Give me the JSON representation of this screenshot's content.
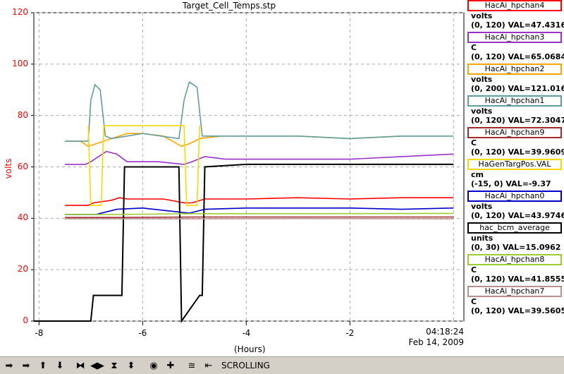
{
  "chart_data": {
    "type": "line",
    "title": "Target_Cell_Temps.stp",
    "ylabel": "volts",
    "xlabel": "(Hours)",
    "timestamp_time": "04:18:24",
    "timestamp_date": "Feb 14, 2009",
    "ylim": [
      0,
      120
    ],
    "xlim": [
      -8.1,
      0.2
    ],
    "yticks": [
      0,
      20,
      40,
      60,
      80,
      100,
      120
    ],
    "xticks": [
      -8,
      -6,
      -4,
      -2
    ],
    "grid": true,
    "series": [
      {
        "name": "HacAi_hpchan4",
        "color": "#ff0000",
        "unit": "volts",
        "range": "(0, 120) VAL=47.4316",
        "x": [
          -7.5,
          -7.05,
          -6.95,
          -6.6,
          -6.45,
          -6.3,
          -5.6,
          -5.2,
          -5.05,
          -4.8,
          -4.4,
          -4,
          -3,
          -2,
          -1,
          0
        ],
        "y": [
          45,
          45,
          46,
          47,
          48,
          47.5,
          47.5,
          46,
          46,
          47.5,
          47.5,
          47.5,
          48,
          47.5,
          48,
          48
        ]
      },
      {
        "name": "HacAi_hpchan3",
        "color": "#9932cc",
        "unit": "C",
        "range": "(0, 120) VAL=65.0684",
        "x": [
          -7.5,
          -7.1,
          -7.0,
          -6.7,
          -6.5,
          -6.3,
          -5.7,
          -5.2,
          -5.05,
          -4.8,
          -4.4,
          -4,
          -3,
          -2,
          -1,
          0
        ],
        "y": [
          61,
          61,
          62,
          66,
          65,
          62,
          62,
          61,
          62,
          64,
          63,
          63,
          63,
          63,
          64,
          65
        ]
      },
      {
        "name": "HacAi_hpchan2",
        "color": "#ffa500",
        "unit": "volts",
        "range": "(0, 200) VAL=121.016",
        "x": [
          -7.5,
          -7.2,
          -7.05,
          -6.9,
          -6.6,
          -6.3,
          -6.0,
          -5.6,
          -5.25,
          -5.1,
          -4.9,
          -4.5,
          -4.0,
          -3.0,
          -2.0,
          -1.0,
          0
        ],
        "y": [
          70,
          70,
          68,
          69,
          71,
          73,
          73,
          72,
          68,
          69,
          71,
          72,
          72,
          72,
          71,
          72,
          72
        ]
      },
      {
        "name": "HacAi_hpchan1",
        "color": "#5f9ea0",
        "unit": "volts",
        "range": "(0, 120) VAL=72.3047",
        "x": [
          -7.5,
          -7.05,
          -7.0,
          -6.92,
          -6.82,
          -6.72,
          -6.6,
          -6.0,
          -5.3,
          -5.2,
          -5.1,
          -4.95,
          -4.85,
          -4.6,
          -4.0,
          -3.0,
          -2.0,
          -1.0,
          0
        ],
        "y": [
          70,
          70,
          86,
          92,
          90,
          72,
          71,
          73,
          71,
          86,
          93,
          91,
          72,
          72,
          72,
          72,
          71,
          72,
          72
        ]
      },
      {
        "name": "HacAi_hpchan9",
        "color": "#a52a2a",
        "unit": "C",
        "range": "(0, 120) VAL=39.9609",
        "x": [
          -7.5,
          -6.5,
          -5.0,
          -3.0,
          0
        ],
        "y": [
          40.3,
          40.3,
          40.5,
          40.5,
          40.5
        ]
      },
      {
        "name": "HaGenTargPos.VAL",
        "color": "#ffd700",
        "unit": "cm",
        "range": "(-15, 0) VAL=-9.37",
        "x": [
          -7.05,
          -7.0,
          -6.8,
          -6.75,
          -5.2,
          -5.15,
          -4.95,
          -4.9
        ],
        "y": [
          76,
          45,
          45,
          76,
          76,
          45,
          45,
          76
        ]
      },
      {
        "name": "HacAi_hpchan0",
        "color": "#0000cd",
        "unit": "volts",
        "range": "(0, 120) VAL=43.9746",
        "x": [
          -7.5,
          -6.9,
          -6.5,
          -6.0,
          -5.1,
          -4.8,
          -4.0,
          -3.0,
          -2.0,
          -1.0,
          0
        ],
        "y": [
          41.5,
          41.5,
          43.5,
          44,
          42,
          43.5,
          44,
          44,
          44,
          43.5,
          44
        ]
      },
      {
        "name": "hac_bcm_average",
        "color": "#000000",
        "unit": "units",
        "range": "(0, 30) VAL=15.0962",
        "x": [
          -8.1,
          -7.0,
          -6.95,
          -6.9,
          -6.6,
          -6.4,
          -6.35,
          -5.3,
          -5.25,
          -4.9,
          -4.85,
          -4.8,
          -4.0,
          -3.0,
          -2.0,
          -1.0,
          0
        ],
        "y": [
          0,
          0,
          10,
          10,
          10,
          10,
          60,
          60,
          0,
          10,
          10,
          60,
          61,
          61,
          61,
          61,
          61
        ]
      },
      {
        "name": "HacAi_hpchan8",
        "color": "#9acd32",
        "unit": "C",
        "range": "(0, 120) VAL=41.8555",
        "x": [
          -7.5,
          -6.5,
          -5.0,
          -3.0,
          0
        ],
        "y": [
          41.5,
          41.5,
          41.8,
          41.8,
          41.9
        ]
      },
      {
        "name": "HacAi_hpchan7",
        "color": "#bc8f8f",
        "unit": "C",
        "range": "(0, 120) VAL=39.5605",
        "x": [
          -7.5,
          -6.5,
          -5.0,
          -3.0,
          0
        ],
        "y": [
          39.8,
          39.8,
          39.8,
          39.9,
          39.8
        ]
      }
    ]
  },
  "toolbar": {
    "mode_label": "SCROLLING",
    "buttons": [
      "arrow-right-icon",
      "arrow-right-icon",
      "arrow-up-icon",
      "arrow-down-icon",
      "expand-horizontal-icon",
      "compress-horizontal-icon",
      "expand-vertical-icon",
      "compress-vertical-icon",
      "record-icon",
      "plus-icon",
      "autoscale-icon",
      "scroll-back-icon"
    ]
  }
}
